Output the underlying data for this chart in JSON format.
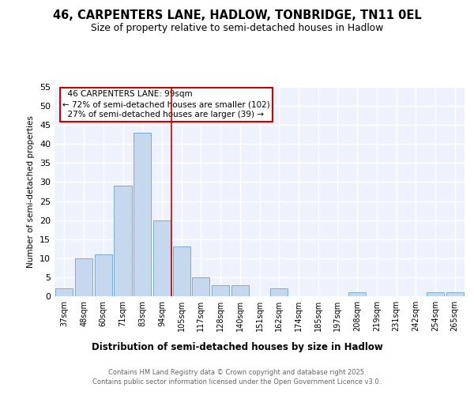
{
  "title": "46, CARPENTERS LANE, HADLOW, TONBRIDGE, TN11 0EL",
  "subtitle": "Size of property relative to semi-detached houses in Hadlow",
  "xlabel": "Distribution of semi-detached houses by size in Hadlow",
  "ylabel": "Number of semi-detached properties",
  "categories": [
    "37sqm",
    "48sqm",
    "60sqm",
    "71sqm",
    "83sqm",
    "94sqm",
    "105sqm",
    "117sqm",
    "128sqm",
    "140sqm",
    "151sqm",
    "162sqm",
    "174sqm",
    "185sqm",
    "197sqm",
    "208sqm",
    "219sqm",
    "231sqm",
    "242sqm",
    "254sqm",
    "265sqm"
  ],
  "values": [
    2,
    10,
    11,
    29,
    43,
    20,
    13,
    5,
    3,
    3,
    0,
    2,
    0,
    0,
    0,
    1,
    0,
    0,
    0,
    1,
    1
  ],
  "bar_color": "#c5d8ee",
  "bar_edge_color": "#7aadd4",
  "vline_x": 5.5,
  "vline_color": "#cc0000",
  "property_label": "46 CARPENTERS LANE: 99sqm",
  "pct_smaller": "72%",
  "num_smaller": 102,
  "pct_larger": "27%",
  "num_larger": 39,
  "annotation_box_color": "#cc0000",
  "ylim": [
    0,
    55
  ],
  "yticks": [
    0,
    5,
    10,
    15,
    20,
    25,
    30,
    35,
    40,
    45,
    50,
    55
  ],
  "bg_color": "#eef2fc",
  "grid_color": "#ffffff",
  "footer_line1": "Contains HM Land Registry data © Crown copyright and database right 2025.",
  "footer_line2": "Contains public sector information licensed under the Open Government Licence v3.0."
}
